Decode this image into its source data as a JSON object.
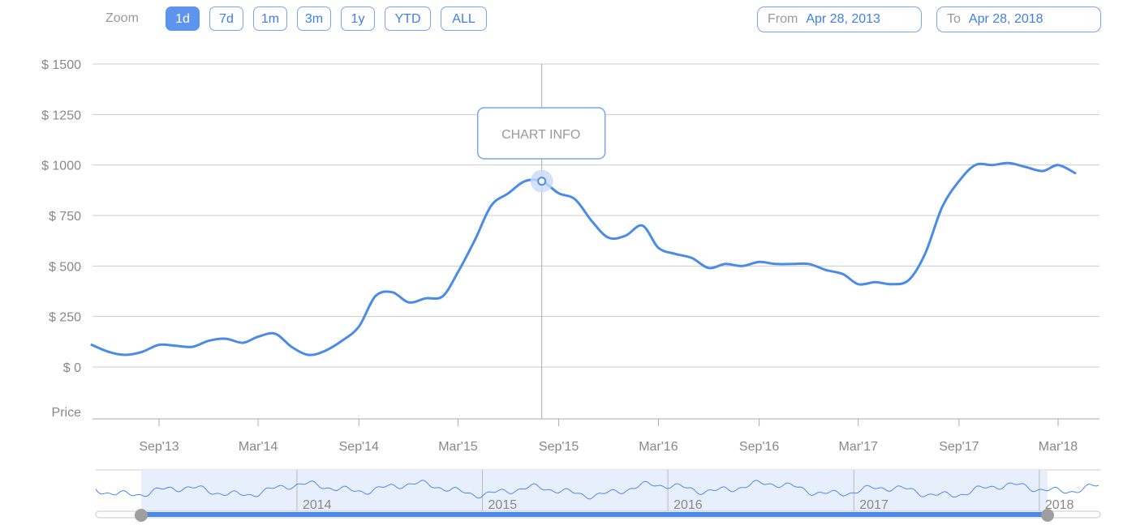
{
  "zoom": {
    "label": "Zoom",
    "buttons": [
      "1d",
      "7d",
      "1m",
      "3m",
      "1y",
      "YTD",
      "ALL"
    ],
    "active": "1d"
  },
  "range": {
    "from_label": "From",
    "from_value": "Apr 28, 2013",
    "to_label": "To",
    "to_value": "Apr 28, 2018"
  },
  "tooltip": {
    "label": "CHART INFO"
  },
  "colors": {
    "line": "#4a8be8",
    "accent": "#5d95ee",
    "grid": "#cccccc",
    "navigator_fill": "#e8effc"
  },
  "chart_data": {
    "type": "line",
    "title": "",
    "xlabel": "",
    "ylabel": "Price",
    "ylim": [
      0,
      1500
    ],
    "y_ticks": [
      "$ 0",
      "$ 250",
      "$ 500",
      "$ 750",
      "$ 1000",
      "$ 1250",
      "$ 1500"
    ],
    "x_ticks": [
      "Sep'13",
      "Mar'14",
      "Sep'14",
      "Mar'15",
      "Sep'15",
      "Mar'16",
      "Sep'16",
      "Mar'17",
      "Sep'17",
      "Mar'18"
    ],
    "grid": true,
    "series": [
      {
        "x": [
          "2013-05-01",
          "2013-06-01",
          "2013-07-01",
          "2013-08-01",
          "2013-09-01",
          "2013-10-01",
          "2013-11-01",
          "2013-12-01",
          "2014-01-01",
          "2014-02-01",
          "2014-03-01",
          "2014-04-01",
          "2014-05-01",
          "2014-06-01",
          "2014-07-01",
          "2014-08-01",
          "2014-09-01",
          "2014-10-01",
          "2014-11-01",
          "2014-12-01",
          "2015-01-01",
          "2015-02-01",
          "2015-03-01",
          "2015-04-01",
          "2015-05-01",
          "2015-06-01",
          "2015-07-01",
          "2015-08-01",
          "2015-09-01",
          "2015-10-01",
          "2015-11-01",
          "2015-12-01",
          "2016-01-01",
          "2016-02-01",
          "2016-03-01",
          "2016-04-01",
          "2016-05-01",
          "2016-06-01",
          "2016-07-01",
          "2016-08-01",
          "2016-09-01",
          "2016-10-01",
          "2016-11-01",
          "2016-12-01",
          "2017-01-01",
          "2017-02-01",
          "2017-03-01",
          "2017-04-01",
          "2017-05-01",
          "2017-06-01",
          "2017-07-01",
          "2017-08-01",
          "2017-09-01",
          "2017-10-01",
          "2017-11-01",
          "2017-12-01",
          "2018-01-01",
          "2018-02-01",
          "2018-03-01",
          "2018-04-01"
        ],
        "values": [
          110,
          75,
          60,
          75,
          110,
          105,
          100,
          130,
          140,
          120,
          150,
          165,
          100,
          60,
          80,
          130,
          200,
          350,
          370,
          320,
          340,
          350,
          470,
          630,
          800,
          860,
          920,
          920,
          860,
          830,
          720,
          640,
          650,
          700,
          590,
          560,
          540,
          490,
          510,
          500,
          520,
          510,
          510,
          510,
          480,
          460,
          410,
          420,
          410,
          430,
          560,
          790,
          920,
          1000,
          1000,
          1010,
          990,
          970,
          1000,
          960
        ]
      }
    ],
    "navigator": {
      "labels": [
        "2014",
        "2015",
        "2016",
        "2017",
        "2018"
      ],
      "selection": [
        "Apr 28, 2013",
        "Apr 28, 2018"
      ]
    },
    "crosshair": {
      "date": "2015-08-01",
      "value": 920
    }
  }
}
